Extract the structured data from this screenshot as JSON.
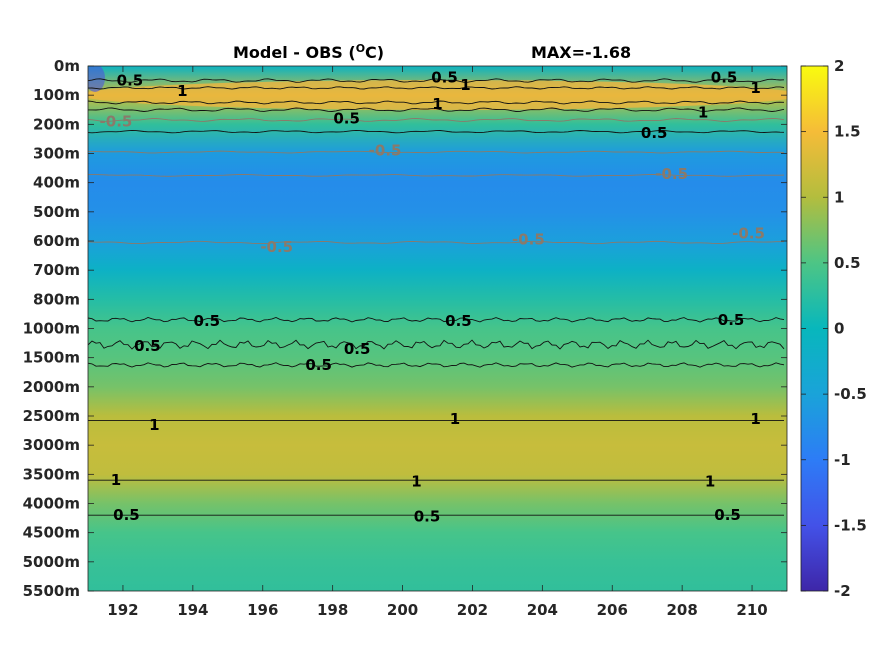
{
  "chart_data": {
    "type": "heatmap",
    "title_left": "Model - OBS (",
    "title_unit_sup": "O",
    "title_unit_rest": "C)",
    "title_right": "MAX=-1.68",
    "y_tick_labels": [
      "0m",
      "100m",
      "200m",
      "300m",
      "400m",
      "500m",
      "600m",
      "700m",
      "800m",
      "1000m",
      "1500m",
      "2000m",
      "2500m",
      "3000m",
      "3500m",
      "4000m",
      "4500m",
      "5000m",
      "5500m"
    ],
    "x_tick_labels": [
      "192",
      "194",
      "196",
      "198",
      "200",
      "202",
      "204",
      "206",
      "208",
      "210"
    ],
    "x_ticks": [
      192,
      194,
      196,
      198,
      200,
      202,
      204,
      206,
      208,
      210
    ],
    "xlim": [
      191,
      211
    ],
    "colorbar": {
      "ticks": [
        2,
        1.5,
        1,
        0.5,
        0,
        -0.5,
        -1,
        -1.5,
        -2
      ],
      "labels": [
        "2",
        "1.5",
        "1",
        "0.5",
        "0",
        "-0.5",
        "-1",
        "-1.5",
        "-2"
      ],
      "limits": [
        -2,
        2
      ],
      "colormap": "parula"
    },
    "depth_profile": {
      "description_levels": [
        "0m",
        "100m",
        "200m",
        "300m",
        "400m",
        "500m",
        "600m",
        "700m",
        "800m",
        "1000m",
        "1500m",
        "2000m",
        "2500m",
        "3000m",
        "3500m",
        "4000m",
        "4500m",
        "5000m",
        "5500m"
      ],
      "values": [
        -0.1,
        1.2,
        0.3,
        -0.6,
        -0.8,
        -0.75,
        -0.55,
        -0.15,
        0.2,
        0.45,
        0.55,
        0.7,
        1.05,
        1.15,
        1.1,
        0.7,
        0.45,
        0.35,
        0.3
      ]
    },
    "contour_labels": [
      {
        "text": "0.5",
        "level": 0.5,
        "x": 192.2,
        "depth": 0.5
      },
      {
        "text": "1",
        "level": 1,
        "x": 193.7,
        "depth": 0.85
      },
      {
        "text": "0.5",
        "level": 0.5,
        "x": 201.2,
        "depth": 0.4
      },
      {
        "text": "1",
        "level": 1,
        "x": 201.8,
        "depth": 0.65
      },
      {
        "text": "1",
        "level": 1,
        "x": 201.0,
        "depth": 1.3
      },
      {
        "text": "0.5",
        "level": 0.5,
        "x": 209.2,
        "depth": 0.4
      },
      {
        "text": "1",
        "level": 1,
        "x": 210.1,
        "depth": 0.75
      },
      {
        "text": "1",
        "level": 1,
        "x": 208.6,
        "depth": 1.6
      },
      {
        "text": "0.5",
        "level": 0.5,
        "x": 198.4,
        "depth": 1.8
      },
      {
        "text": "0.5",
        "level": 0.5,
        "x": 207.2,
        "depth": 2.3
      },
      {
        "text": "-0.5",
        "level": -0.5,
        "x": 191.8,
        "depth": 1.9
      },
      {
        "text": "-0.5",
        "level": -0.5,
        "x": 199.5,
        "depth": 2.9
      },
      {
        "text": "-0.5",
        "level": -0.5,
        "x": 207.7,
        "depth": 3.7
      },
      {
        "text": "-0.5",
        "level": -0.5,
        "x": 196.4,
        "depth": 6.2
      },
      {
        "text": "-0.5",
        "level": -0.5,
        "x": 203.6,
        "depth": 5.95
      },
      {
        "text": "-0.5",
        "level": -0.5,
        "x": 209.9,
        "depth": 5.75
      },
      {
        "text": "0.5",
        "level": 0.5,
        "x": 194.4,
        "depth": 8.75
      },
      {
        "text": "0.5",
        "level": 0.5,
        "x": 201.6,
        "depth": 8.75
      },
      {
        "text": "0.5",
        "level": 0.5,
        "x": 209.4,
        "depth": 8.7
      },
      {
        "text": "0.5",
        "level": 0.5,
        "x": 192.7,
        "depth": 9.6
      },
      {
        "text": "0.5",
        "level": 0.5,
        "x": 198.7,
        "depth": 9.7
      },
      {
        "text": "0.5",
        "level": 0.5,
        "x": 197.6,
        "depth": 10.25
      },
      {
        "text": "1",
        "level": 1,
        "x": 192.9,
        "depth": 12.3
      },
      {
        "text": "1",
        "level": 1,
        "x": 201.5,
        "depth": 12.1
      },
      {
        "text": "1",
        "level": 1,
        "x": 210.1,
        "depth": 12.1
      },
      {
        "text": "1",
        "level": 1,
        "x": 191.8,
        "depth": 14.2
      },
      {
        "text": "1",
        "level": 1,
        "x": 200.4,
        "depth": 14.25
      },
      {
        "text": "1",
        "level": 1,
        "x": 208.8,
        "depth": 14.25
      },
      {
        "text": "0.5",
        "level": 0.5,
        "x": 192.1,
        "depth": 15.4
      },
      {
        "text": "0.5",
        "level": 0.5,
        "x": 200.7,
        "depth": 15.45
      },
      {
        "text": "0.5",
        "level": 0.5,
        "x": 209.3,
        "depth": 15.4
      }
    ]
  }
}
